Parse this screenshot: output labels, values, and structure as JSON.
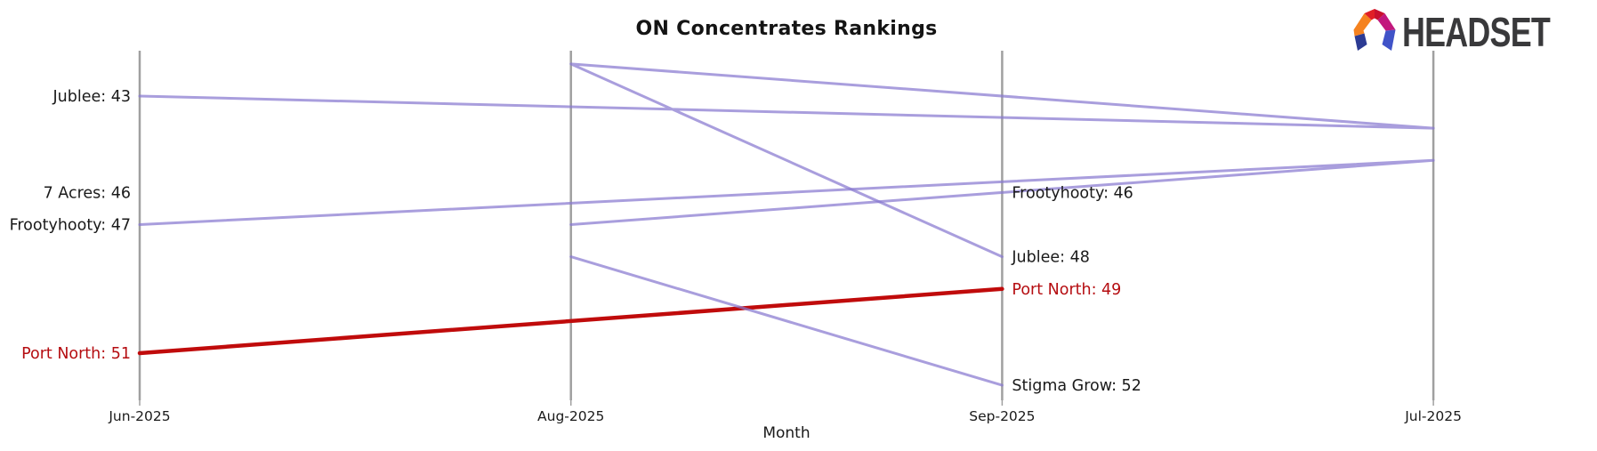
{
  "header": {
    "title": "ON Concentrates Rankings"
  },
  "logo": {
    "brand": "HEADSET",
    "mark_icon": "headset-logo-mark"
  },
  "chart_data": {
    "type": "line",
    "subtype": "bump-ranking-chart",
    "title": "ON Concentrates Rankings",
    "xlabel": "Month",
    "ylabel": "",
    "x_axis_order": [
      "Jun-2025",
      "Aug-2025",
      "Sep-2025",
      "Jul-2025"
    ],
    "chronological_order": [
      "Jun-2025",
      "Jul-2025",
      "Aug-2025",
      "Sep-2025"
    ],
    "y_axis": {
      "inverted": true,
      "visible": false,
      "approx_range": [
        42,
        52
      ]
    },
    "grid": "vertical month axis lines only",
    "legend": "none (direct line labels at first and last points)",
    "series": [
      {
        "name": "Jublee",
        "color_key": "purple",
        "highlighted": false,
        "points": [
          {
            "month": "Jun-2025",
            "value": 43
          },
          {
            "month": "Jul-2025",
            "value": 44
          },
          {
            "month": "Aug-2025",
            "value": 42
          },
          {
            "month": "Sep-2025",
            "value": 48
          }
        ]
      },
      {
        "name": "7 Acres",
        "color_key": "purple",
        "highlighted": false,
        "points": [
          {
            "month": "Jun-2025",
            "value": 46
          }
        ]
      },
      {
        "name": "Frootyhooty",
        "color_key": "purple",
        "highlighted": false,
        "points": [
          {
            "month": "Jun-2025",
            "value": 47
          },
          {
            "month": "Jul-2025",
            "value": 45
          },
          {
            "month": "Aug-2025",
            "value": 47
          },
          {
            "month": "Sep-2025",
            "value": 46
          }
        ]
      },
      {
        "name": "Port North",
        "color_key": "red",
        "highlighted": true,
        "points": [
          {
            "month": "Jun-2025",
            "value": 51
          },
          {
            "month": "Sep-2025",
            "value": 49
          }
        ]
      },
      {
        "name": "Stigma Grow",
        "color_key": "purple",
        "highlighted": false,
        "points": [
          {
            "month": "Aug-2025",
            "value": 48
          },
          {
            "month": "Sep-2025",
            "value": 52
          }
        ]
      }
    ],
    "labels": {
      "left": [
        {
          "text": "Jublee: 43",
          "value": 43,
          "color_key": "dark"
        },
        {
          "text": "7 Acres: 46",
          "value": 46,
          "color_key": "dark"
        },
        {
          "text": "Frootyhooty: 47",
          "value": 47,
          "color_key": "dark"
        },
        {
          "text": "Port North: 51",
          "value": 51,
          "color_key": "red_text"
        }
      ],
      "right": [
        {
          "text": "Frootyhooty: 46",
          "value": 46,
          "color_key": "dark"
        },
        {
          "text": "Jublee: 48",
          "value": 48,
          "color_key": "dark"
        },
        {
          "text": "Port North: 49",
          "value": 49,
          "color_key": "red_text"
        },
        {
          "text": "Stigma Grow: 52",
          "value": 52,
          "color_key": "dark"
        }
      ]
    },
    "colors": {
      "purple": "#8878d0",
      "red": "#c00b0b",
      "red_text": "#b50d11",
      "dark": "#1a1a1a",
      "axis": "#a0a0a0"
    }
  }
}
